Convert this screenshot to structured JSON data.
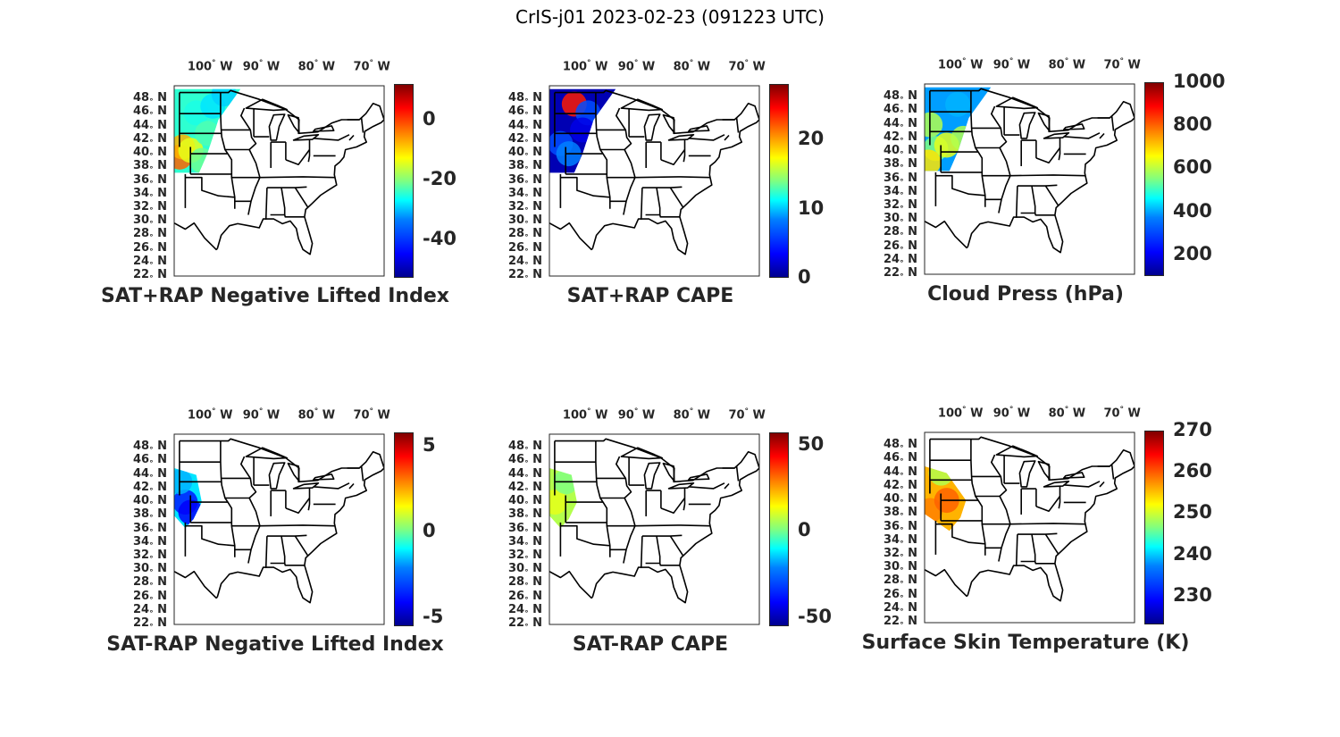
{
  "figure": {
    "title": "CrIS-j01 2023-02-23 (091223 UTC)"
  },
  "axes": {
    "lon_labels": [
      "100",
      "W",
      "90",
      "W",
      "80",
      "W",
      "70",
      "W"
    ],
    "lon_ticks": [
      {
        "deg": "100",
        "dir": "W"
      },
      {
        "deg": "90",
        "dir": "W"
      },
      {
        "deg": "80",
        "dir": "W"
      },
      {
        "deg": "70",
        "dir": "W"
      }
    ],
    "lat_ticks": [
      {
        "deg": "48",
        "dir": "N"
      },
      {
        "deg": "46",
        "dir": "N"
      },
      {
        "deg": "44",
        "dir": "N"
      },
      {
        "deg": "42",
        "dir": "N"
      },
      {
        "deg": "40",
        "dir": "N"
      },
      {
        "deg": "38",
        "dir": "N"
      },
      {
        "deg": "36",
        "dir": "N"
      },
      {
        "deg": "34",
        "dir": "N"
      },
      {
        "deg": "32",
        "dir": "N"
      },
      {
        "deg": "30",
        "dir": "N"
      },
      {
        "deg": "28",
        "dir": "N"
      },
      {
        "deg": "26",
        "dir": "N"
      },
      {
        "deg": "24",
        "dir": "N"
      },
      {
        "deg": "22",
        "dir": "N"
      }
    ],
    "lon_range": [
      -105,
      -67
    ],
    "lat_range": [
      22,
      50
    ],
    "colormap": "jet"
  },
  "panels": [
    {
      "title": "SAT+RAP Negative Lifted Index",
      "colorbar_ticks": [
        "0",
        "-20",
        "-40"
      ],
      "colorbar_tick_values": [
        0,
        -20,
        -40
      ],
      "colorbar_range": [
        -53,
        12
      ]
    },
    {
      "title": "SAT+RAP CAPE",
      "colorbar_ticks": [
        "20",
        "10",
        "0"
      ],
      "colorbar_tick_values": [
        20,
        10,
        0
      ],
      "colorbar_range": [
        0,
        28
      ]
    },
    {
      "title": "Cloud Press (hPa)",
      "colorbar_ticks": [
        "1000",
        "800",
        "600",
        "400",
        "200"
      ],
      "colorbar_tick_values": [
        1000,
        800,
        600,
        400,
        200
      ],
      "colorbar_range": [
        100,
        1000
      ]
    },
    {
      "title": "SAT-RAP Negative Lifted Index",
      "colorbar_ticks": [
        "5",
        "0",
        "-5"
      ],
      "colorbar_tick_values": [
        5,
        0,
        -5
      ],
      "colorbar_range": [
        -5.5,
        5.8
      ]
    },
    {
      "title": "SAT-RAP CAPE",
      "colorbar_ticks": [
        "50",
        "0",
        "-50"
      ],
      "colorbar_tick_values": [
        50,
        0,
        -50
      ],
      "colorbar_range": [
        -55,
        57
      ]
    },
    {
      "title": "Surface Skin Temperature (K)",
      "colorbar_ticks": [
        "270",
        "260",
        "250",
        "240",
        "230"
      ],
      "colorbar_tick_values": [
        270,
        260,
        250,
        240,
        230
      ],
      "colorbar_range": [
        223,
        270
      ]
    }
  ]
}
